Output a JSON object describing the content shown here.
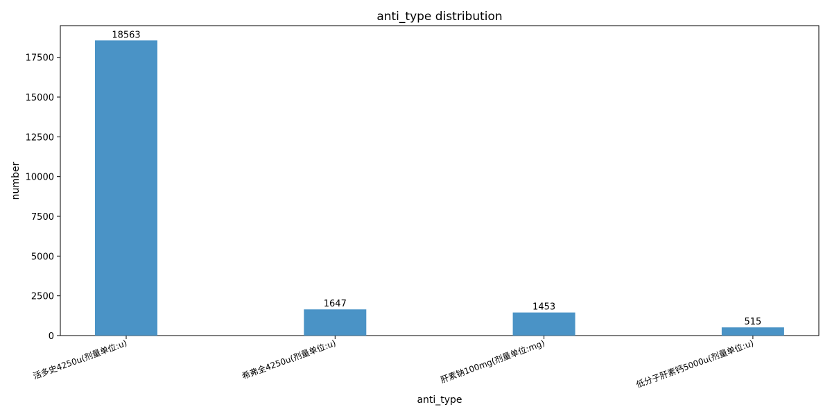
{
  "chart_data": {
    "type": "bar",
    "title": "anti_type distribution",
    "xlabel": "anti_type",
    "ylabel": "number",
    "categories": [
      "活多史4250u(剂量单位:u)",
      "希弗全4250u(剂量单位:u)",
      "肝素钠100mg(剂量单位:mg)",
      "低分子肝素钙5000u(剂量单位:u)"
    ],
    "values": [
      18563,
      1647,
      1453,
      515
    ],
    "data_labels": [
      "18563",
      "1647",
      "1453",
      "515"
    ],
    "ylim": [
      0,
      19492
    ],
    "yticks": [
      0,
      2500,
      5000,
      7500,
      10000,
      12500,
      15000,
      17500
    ],
    "ytick_labels": [
      "0",
      "2500",
      "5000",
      "7500",
      "10000",
      "12500",
      "15000",
      "17500"
    ],
    "grid": false,
    "legend": "none",
    "bar_color": "#4a93c6"
  }
}
